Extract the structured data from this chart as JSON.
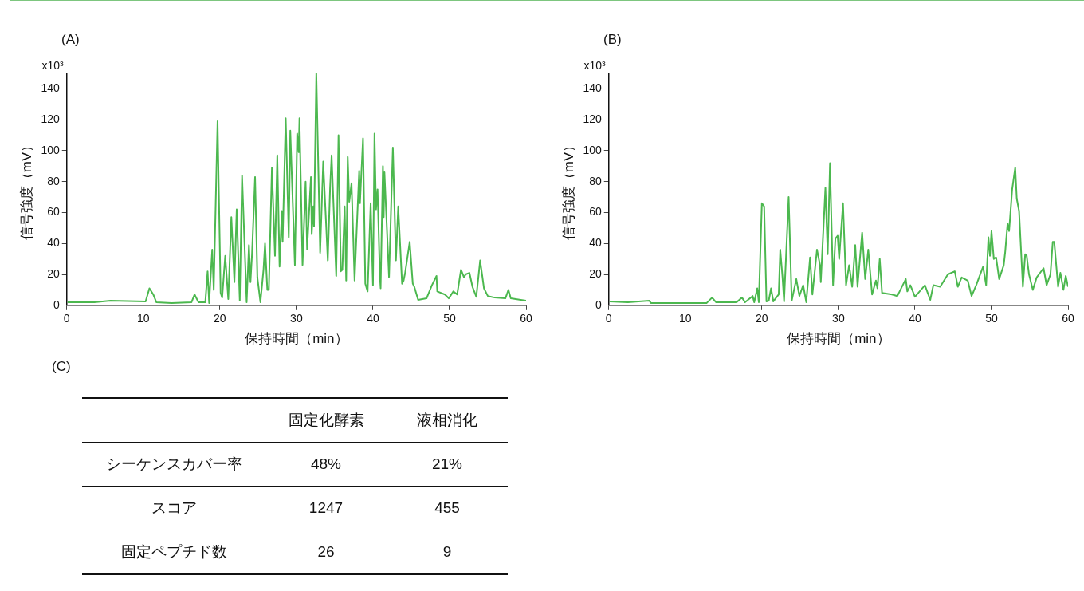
{
  "chart_data": [
    {
      "type": "line",
      "title": "(A)",
      "xlabel": "保持時間（min）",
      "ylabel": "信号強度（mV）",
      "color": "#4cb84f",
      "marker": "none",
      "line_style": "solid",
      "grid": false,
      "annotations": [
        "x10³"
      ],
      "xlim": [
        0,
        60
      ],
      "xticks": [
        0,
        10,
        20,
        30,
        40,
        50,
        60
      ],
      "ylim": [
        0,
        150
      ],
      "yticks": [
        0,
        20,
        40,
        60,
        80,
        100,
        120,
        140
      ],
      "x": [
        0.1,
        3.6,
        5.7,
        10.3,
        10.8,
        11.3,
        11.7,
        13.7,
        16.3,
        16.7,
        17.2,
        18.1,
        18.4,
        18.6,
        19.0,
        19.2,
        19.7,
        20.1,
        20.3,
        20.7,
        21.1,
        21.5,
        21.9,
        22.2,
        22.6,
        22.9,
        23.5,
        23.8,
        24.0,
        24.2,
        24.6,
        24.9,
        25.3,
        25.7,
        25.9,
        26.2,
        26.4,
        26.8,
        27.2,
        27.5,
        27.8,
        28.1,
        28.2,
        28.6,
        29.0,
        29.2,
        29.8,
        30.1,
        30.3,
        30.4,
        30.8,
        31.2,
        31.4,
        31.9,
        32.0,
        32.2,
        32.3,
        32.6,
        33.1,
        33.5,
        34.1,
        34.4,
        34.6,
        35.2,
        35.5,
        35.8,
        36.0,
        36.3,
        36.5,
        36.7,
        36.9,
        37.2,
        37.6,
        38.2,
        38.3,
        38.7,
        39.0,
        39.3,
        39.7,
        40.0,
        40.2,
        40.4,
        40.6,
        40.9,
        41.0,
        41.3,
        41.4,
        41.5,
        42.1,
        42.6,
        43.0,
        43.3,
        43.8,
        44.0,
        44.2,
        44.8,
        45.2,
        45.4,
        45.9,
        47.0,
        47.7,
        48.3,
        48.4,
        49.4,
        49.9,
        50.5,
        51.0,
        51.5,
        51.9,
        52.1,
        52.6,
        53.0,
        53.5,
        54.0,
        54.5,
        55.0,
        55.9,
        57.3,
        57.7,
        58.0,
        59.3,
        60.0
      ],
      "values": [
        2,
        2,
        3,
        2.5,
        11,
        7,
        2,
        1.5,
        2,
        7,
        2,
        2,
        22,
        1.5,
        36,
        10,
        119,
        8,
        5,
        32,
        4,
        57,
        15,
        62,
        3,
        84,
        2,
        39,
        15,
        33,
        83,
        18,
        2,
        23,
        40,
        10,
        10,
        89,
        32,
        97,
        25,
        61,
        41,
        121,
        44,
        113,
        26,
        111,
        99,
        121,
        26,
        80,
        36,
        83,
        46,
        64,
        51,
        150,
        34,
        93,
        29,
        76,
        97,
        19,
        110,
        22,
        23,
        64,
        16,
        96,
        67,
        79,
        16,
        87,
        66,
        108,
        14,
        9,
        66,
        13,
        111,
        62,
        75,
        19,
        11,
        90,
        57,
        86,
        18,
        102,
        29,
        64,
        14,
        16,
        21,
        41,
        14,
        12,
        3.5,
        4.5,
        13,
        19,
        9,
        7,
        4.5,
        9,
        7,
        23,
        18,
        20,
        21,
        12,
        5.5,
        29,
        11,
        6,
        5,
        4.5,
        10,
        4.5,
        3.5,
        3
      ]
    },
    {
      "type": "line",
      "title": "(B)",
      "xlabel": "保持時間（min）",
      "ylabel": "信号強度（mV）",
      "color": "#4cb84f",
      "marker": "none",
      "line_style": "solid",
      "grid": false,
      "annotations": [
        "x10³"
      ],
      "xlim": [
        0,
        60
      ],
      "xticks": [
        0,
        10,
        20,
        30,
        40,
        50,
        60
      ],
      "ylim": [
        0,
        150
      ],
      "yticks": [
        0,
        20,
        40,
        60,
        80,
        100,
        120,
        140
      ],
      "x": [
        0.1,
        2.5,
        5.3,
        5.5,
        10.8,
        12.8,
        13.5,
        14.0,
        16.7,
        17.4,
        17.8,
        18.8,
        19.0,
        19.4,
        19.6,
        20.0,
        20.3,
        20.6,
        20.9,
        21.2,
        21.5,
        22.2,
        22.4,
        22.7,
        22.9,
        23.5,
        23.9,
        24.5,
        24.9,
        25.4,
        25.8,
        26.3,
        26.6,
        27.2,
        27.6,
        27.7,
        28.3,
        28.6,
        28.9,
        29.3,
        29.6,
        29.9,
        30.1,
        30.6,
        31.0,
        31.4,
        31.8,
        32.2,
        32.5,
        33.1,
        33.5,
        33.9,
        34.4,
        34.9,
        35.1,
        35.4,
        35.7,
        37.0,
        37.7,
        38.8,
        39.0,
        39.4,
        40.0,
        41.3,
        42.0,
        42.4,
        43.3,
        44.3,
        45.2,
        45.6,
        46.1,
        46.9,
        47.4,
        48.0,
        48.9,
        49.3,
        49.6,
        49.8,
        50.0,
        50.3,
        50.6,
        51.0,
        51.6,
        51.8,
        52.1,
        52.3,
        52.7,
        53.1,
        53.3,
        53.6,
        54.1,
        54.4,
        54.6,
        54.9,
        55.4,
        55.9,
        56.8,
        57.2,
        57.7,
        58.0,
        58.2,
        58.7,
        59.0,
        59.4,
        59.7,
        60.0
      ],
      "values": [
        2.5,
        2,
        3,
        1.5,
        1.5,
        1.5,
        5,
        2,
        2,
        5,
        2,
        6,
        2,
        11,
        2,
        66,
        64,
        2.5,
        3,
        11,
        2.5,
        7,
        36,
        18,
        2.5,
        70,
        3,
        17,
        6,
        13,
        2,
        31,
        7,
        36,
        26,
        15,
        76,
        33,
        92,
        13,
        43,
        45,
        30,
        66,
        13,
        26,
        12,
        39,
        12,
        47,
        17,
        36,
        7,
        16,
        11,
        30,
        8,
        7,
        6,
        17,
        9,
        13,
        5.5,
        13,
        3.5,
        13,
        12,
        20,
        22,
        12,
        18,
        16,
        6,
        13,
        25,
        13,
        44,
        32,
        48,
        30,
        31,
        17,
        26,
        35,
        53,
        48,
        75,
        89,
        69,
        61,
        12,
        33,
        32,
        20,
        10,
        18,
        24,
        13,
        20,
        41,
        41,
        12,
        21,
        10,
        19,
        12
      ]
    },
    {
      "type": "other",
      "title": "(C)",
      "categories": [
        "シーケンスカバー率",
        "スコア",
        "固定ペプチド数"
      ],
      "series": [
        {
          "name": "固定化酵素",
          "values": [
            48,
            1247,
            26
          ],
          "value_labels": [
            "48%",
            "1247",
            "26"
          ]
        },
        {
          "name": "液相消化",
          "values": [
            21,
            455,
            9
          ],
          "value_labels": [
            "21%",
            "455",
            "9"
          ]
        }
      ]
    }
  ]
}
